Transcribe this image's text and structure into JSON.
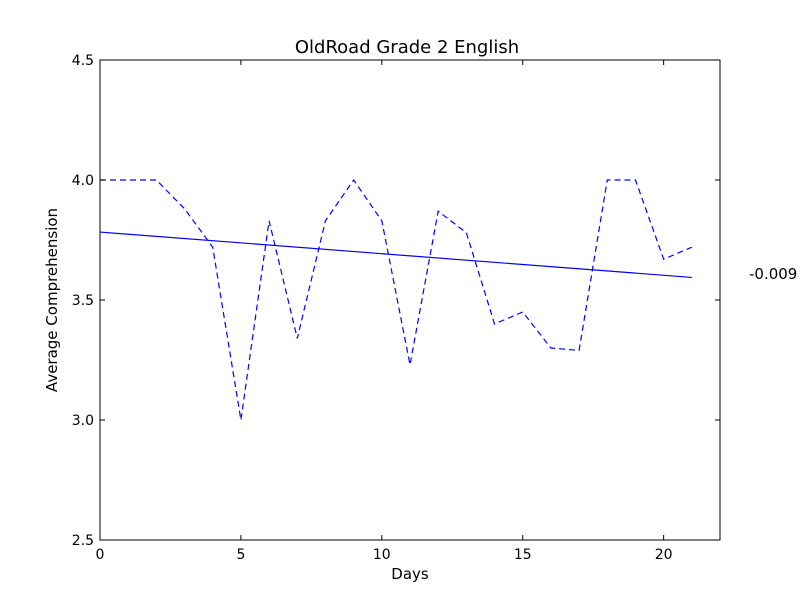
{
  "chart_data": {
    "type": "line",
    "title": "OldRoad Grade 2 English",
    "xlabel": "Days",
    "ylabel": "Average Comprehension",
    "xlim": [
      0,
      22
    ],
    "ylim": [
      2.5,
      4.5
    ],
    "xticks": [
      0,
      5,
      10,
      15,
      20
    ],
    "xtick_labels": [
      "0",
      "5",
      "10",
      "15",
      "20"
    ],
    "yticks": [
      2.5,
      3.0,
      3.5,
      4.0,
      4.5
    ],
    "ytick_labels": [
      "2.5",
      "3.0",
      "3.5",
      "4.0",
      "4.5"
    ],
    "grid": false,
    "series": [
      {
        "style": "dashed",
        "color": "#0000ff",
        "x": [
          0,
          1,
          2,
          3,
          4,
          5,
          6,
          7,
          8,
          9,
          10,
          11,
          12,
          13,
          14,
          15,
          16,
          17,
          18,
          19,
          20,
          21
        ],
        "y": [
          4.0,
          4.0,
          4.0,
          3.88,
          3.72,
          3.0,
          3.83,
          3.34,
          3.83,
          4.0,
          3.83,
          3.23,
          3.87,
          3.78,
          3.4,
          3.45,
          3.3,
          3.29,
          4.0,
          4.0,
          3.67,
          3.72
        ]
      },
      {
        "style": "solid",
        "color": "#0000ff",
        "x": [
          0,
          21
        ],
        "y": [
          3.783,
          3.594
        ]
      }
    ],
    "annotation": "-0.009"
  }
}
